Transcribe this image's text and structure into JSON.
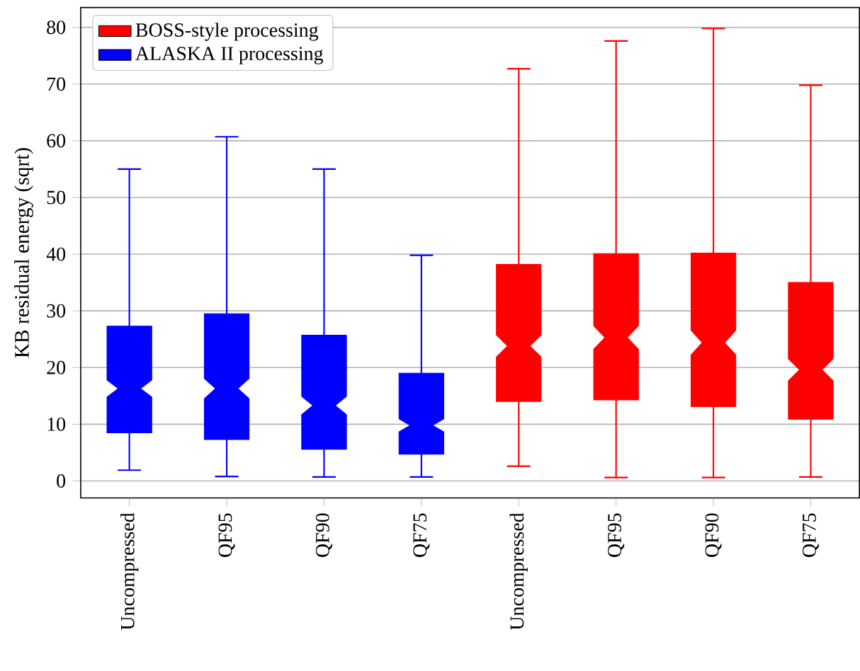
{
  "chart_data": {
    "type": "box",
    "ylabel": "KB residual energy (sqrt)",
    "categories": [
      "Uncompressed",
      "QF95",
      "QF90",
      "QF75",
      "Uncompressed",
      "QF95",
      "QF90",
      "QF75"
    ],
    "series": [
      {
        "name": "BOSS-style processing",
        "color": "#ff0000",
        "boxes": [
          null,
          null,
          null,
          null,
          {
            "low": 2.6,
            "q1": 14,
            "median": 23.8,
            "q3": 38.2,
            "high": 72.7
          },
          {
            "low": 0.6,
            "q1": 14.3,
            "median": 25.3,
            "q3": 40.1,
            "high": 77.6
          },
          {
            "low": 0.6,
            "q1": 13.1,
            "median": 24.4,
            "q3": 40.2,
            "high": 79.8
          },
          {
            "low": 0.7,
            "q1": 10.9,
            "median": 19.6,
            "q3": 35,
            "high": 69.8
          }
        ]
      },
      {
        "name": "ALASKA II processing",
        "color": "#0000ff",
        "boxes": [
          {
            "low": 1.9,
            "q1": 8.5,
            "median": 16.3,
            "q3": 27.3,
            "high": 55
          },
          {
            "low": 0.8,
            "q1": 7.3,
            "median": 16.3,
            "q3": 29.5,
            "high": 60.7
          },
          {
            "low": 0.7,
            "q1": 5.6,
            "median": 13.3,
            "q3": 25.7,
            "high": 55
          },
          {
            "low": 0.7,
            "q1": 4.7,
            "median": 9.8,
            "q3": 19,
            "high": 39.8
          },
          null,
          null,
          null,
          null
        ]
      }
    ],
    "ylim": [
      -3,
      83.5
    ],
    "yticks": [
      0,
      10,
      20,
      30,
      40,
      50,
      60,
      70,
      80
    ],
    "grid": "y",
    "legend": "top left"
  }
}
